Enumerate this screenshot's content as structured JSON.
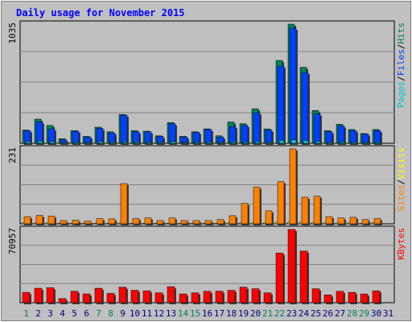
{
  "title": "Daily usage for November 2015",
  "colors": {
    "background": "#c0c0c0",
    "plot_bg": "#bfbfbf",
    "hits": "#00805c",
    "files": "#0040ff",
    "pages": "#00c8c8",
    "visits": "#ffff00",
    "sites": "#ff8000",
    "kbytes": "#ff0000",
    "weekend_day": "#00805c",
    "weekday_day": "#000080",
    "title": "#0000ff"
  },
  "chart_data": [
    {
      "type": "bar",
      "name": "hits-files-pages",
      "ymax_label": "1035",
      "ymax": 1035,
      "legend": [
        "Pages",
        "/",
        "Files",
        "/",
        "Hits"
      ],
      "categories": [
        "1",
        "2",
        "3",
        "4",
        "5",
        "6",
        "7",
        "8",
        "9",
        "10",
        "11",
        "12",
        "13",
        "14",
        "15",
        "16",
        "17",
        "18",
        "19",
        "20",
        "21",
        "22",
        "23",
        "24",
        "25",
        "26",
        "27",
        "28",
        "29",
        "30",
        "31"
      ],
      "series": [
        {
          "name": "Hits",
          "values": [
            115,
            210,
            155,
            40,
            110,
            60,
            140,
            100,
            250,
            110,
            105,
            65,
            180,
            60,
            100,
            125,
            65,
            185,
            170,
            300,
            125,
            720,
            1035,
            660,
            285,
            110,
            165,
            120,
            85,
            120,
            0
          ]
        },
        {
          "name": "Files",
          "values": [
            110,
            185,
            125,
            30,
            105,
            55,
            130,
            90,
            245,
            100,
            100,
            60,
            170,
            55,
            95,
            120,
            55,
            145,
            155,
            265,
            115,
            670,
            1000,
            615,
            255,
            100,
            150,
            110,
            80,
            110,
            0
          ]
        },
        {
          "name": "Pages",
          "values": [
            15,
            20,
            15,
            8,
            10,
            8,
            15,
            10,
            12,
            12,
            10,
            8,
            15,
            8,
            10,
            12,
            8,
            12,
            12,
            15,
            10,
            25,
            30,
            25,
            15,
            10,
            12,
            10,
            8,
            10,
            0
          ]
        }
      ]
    },
    {
      "type": "bar",
      "name": "visits-sites",
      "ymax_label": "231",
      "ymax": 231,
      "legend": [
        "Sites",
        "/",
        "Visits"
      ],
      "categories": [
        "1",
        "2",
        "3",
        "4",
        "5",
        "6",
        "7",
        "8",
        "9",
        "10",
        "11",
        "12",
        "13",
        "14",
        "15",
        "16",
        "17",
        "18",
        "19",
        "20",
        "21",
        "22",
        "23",
        "24",
        "25",
        "26",
        "27",
        "28",
        "29",
        "30",
        "31"
      ],
      "series": [
        {
          "name": "Visits",
          "values": [
            3,
            3,
            3,
            2,
            2,
            2,
            2,
            2,
            3,
            2,
            2,
            2,
            2,
            2,
            2,
            2,
            2,
            3,
            4,
            5,
            4,
            6,
            7,
            6,
            5,
            3,
            3,
            3,
            2,
            3,
            0
          ]
        },
        {
          "name": "Sites",
          "values": [
            22,
            26,
            24,
            10,
            11,
            8,
            16,
            15,
            124,
            16,
            18,
            10,
            18,
            10,
            10,
            10,
            13,
            25,
            63,
            113,
            40,
            130,
            231,
            82,
            85,
            22,
            18,
            20,
            13,
            16,
            0
          ]
        }
      ]
    },
    {
      "type": "bar",
      "name": "kbytes",
      "ymax_label": "70957",
      "ymax": 70957,
      "legend": [
        "KBytes"
      ],
      "categories": [
        "1",
        "2",
        "3",
        "4",
        "5",
        "6",
        "7",
        "8",
        "9",
        "10",
        "11",
        "12",
        "13",
        "14",
        "15",
        "16",
        "17",
        "18",
        "19",
        "20",
        "21",
        "22",
        "23",
        "24",
        "25",
        "26",
        "27",
        "28",
        "29",
        "30",
        "31"
      ],
      "series": [
        {
          "name": "KBytes",
          "values": [
            10000,
            14000,
            14500,
            4000,
            11000,
            8500,
            14000,
            9000,
            15000,
            12000,
            11500,
            9500,
            15500,
            8500,
            9500,
            11000,
            11200,
            12000,
            15000,
            13500,
            9500,
            48000,
            70957,
            50000,
            13500,
            7500,
            11000,
            10000,
            8500,
            11500,
            0
          ]
        }
      ]
    }
  ]
}
